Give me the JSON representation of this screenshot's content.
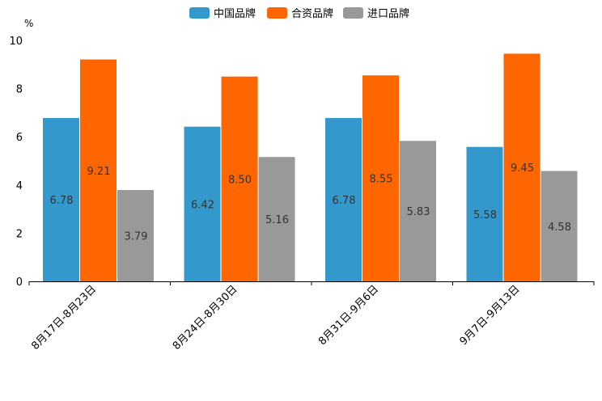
{
  "chart_data": {
    "type": "bar",
    "title": "",
    "unit": "%",
    "xlabel": "",
    "ylabel": "%",
    "ylim": [
      0,
      10
    ],
    "yticks": [
      0,
      2,
      4,
      6,
      8,
      10
    ],
    "grid": false,
    "legend_position": "top-center",
    "categories": [
      "8月17日-8月23日",
      "8月24日-8月30日",
      "8月31日-9月6日",
      "9月7日-9月13日"
    ],
    "series": [
      {
        "name": "中国品牌",
        "color": "#3399cc",
        "values": [
          6.78,
          6.42,
          6.78,
          5.58
        ]
      },
      {
        "name": "合资品牌",
        "color": "#ff6600",
        "values": [
          9.21,
          8.5,
          8.55,
          9.45
        ]
      },
      {
        "name": "进口品牌",
        "color": "#999999",
        "values": [
          3.79,
          5.16,
          5.83,
          4.58
        ]
      }
    ]
  }
}
